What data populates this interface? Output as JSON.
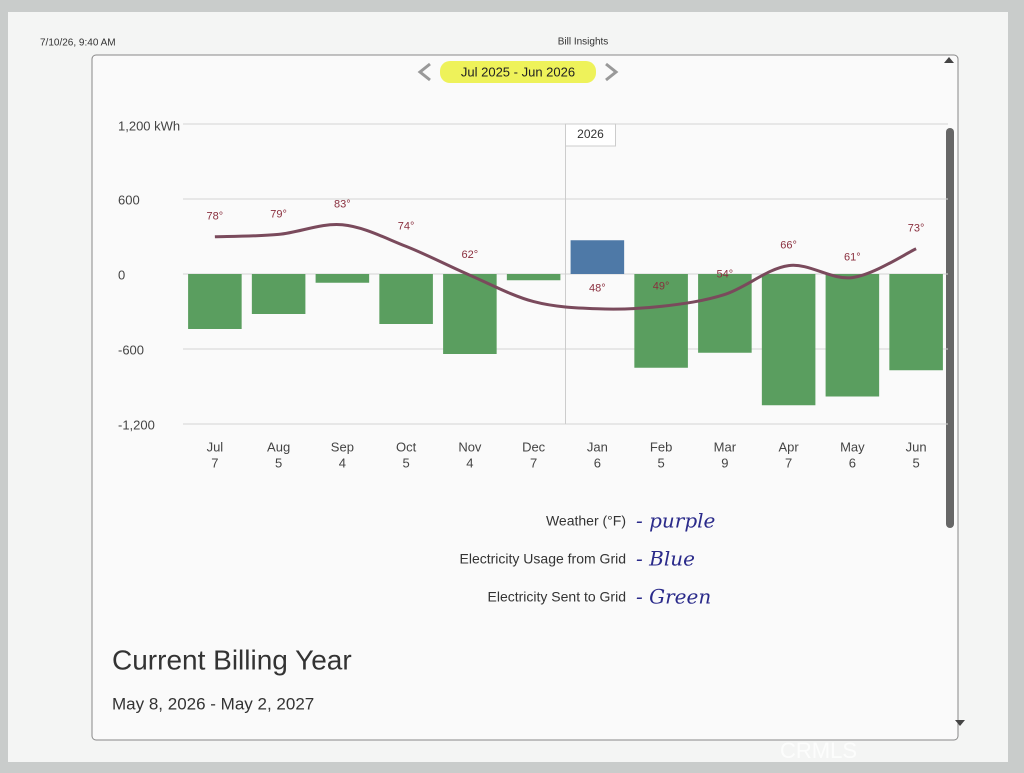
{
  "header": {
    "timestamp": "7/10/26, 9:40 AM",
    "page_title": "Bill Insights"
  },
  "chart_data": {
    "type": "bar",
    "period": "Jul 2025 - Jun 2026",
    "year_marker": "2026",
    "categories": [
      "Jul",
      "Aug",
      "Sep",
      "Oct",
      "Nov",
      "Dec",
      "Jan",
      "Feb",
      "Mar",
      "Apr",
      "May",
      "Jun"
    ],
    "x_sublabels": [
      "7",
      "5",
      "4",
      "5",
      "4",
      "7",
      "6",
      "5",
      "9",
      "7",
      "6",
      "5"
    ],
    "ylim": [
      -1200,
      1200
    ],
    "yticks": [
      {
        "value": 1200,
        "label": "1,200 kWh"
      },
      600,
      0,
      -600,
      {
        "value": -1200,
        "label": "-1,200"
      }
    ],
    "y2lim": [
      0,
      125
    ],
    "grid": true,
    "series": [
      {
        "name": "Electricity Usage from Grid",
        "color": "#4e79a7",
        "values": [
          null,
          null,
          null,
          null,
          null,
          null,
          270,
          null,
          null,
          null,
          null,
          null
        ]
      },
      {
        "name": "Electricity Sent to Grid",
        "color": "#5a9e5f",
        "values": [
          -440,
          -320,
          -70,
          -400,
          -640,
          -50,
          null,
          -750,
          -630,
          -1050,
          -980,
          -770
        ]
      },
      {
        "name": "Weather (°F)",
        "type": "line",
        "axis": "y2",
        "color": "#7a4a5c",
        "values": [
          78,
          79,
          83,
          74,
          62,
          51,
          48,
          49,
          54,
          66,
          61,
          73
        ],
        "value_labels": [
          "78°",
          "79°",
          "83°",
          "74°",
          "62°",
          null,
          "48°",
          "49°",
          "54°",
          "66°",
          "61°",
          "73°"
        ]
      }
    ],
    "legend_notes": [
      "- purple",
      "- Blue",
      "- Green"
    ]
  },
  "footer": {
    "title": "Current Billing Year",
    "date_range": "May 8, 2026 - May 2, 2027"
  },
  "watermark": "CRMLS"
}
